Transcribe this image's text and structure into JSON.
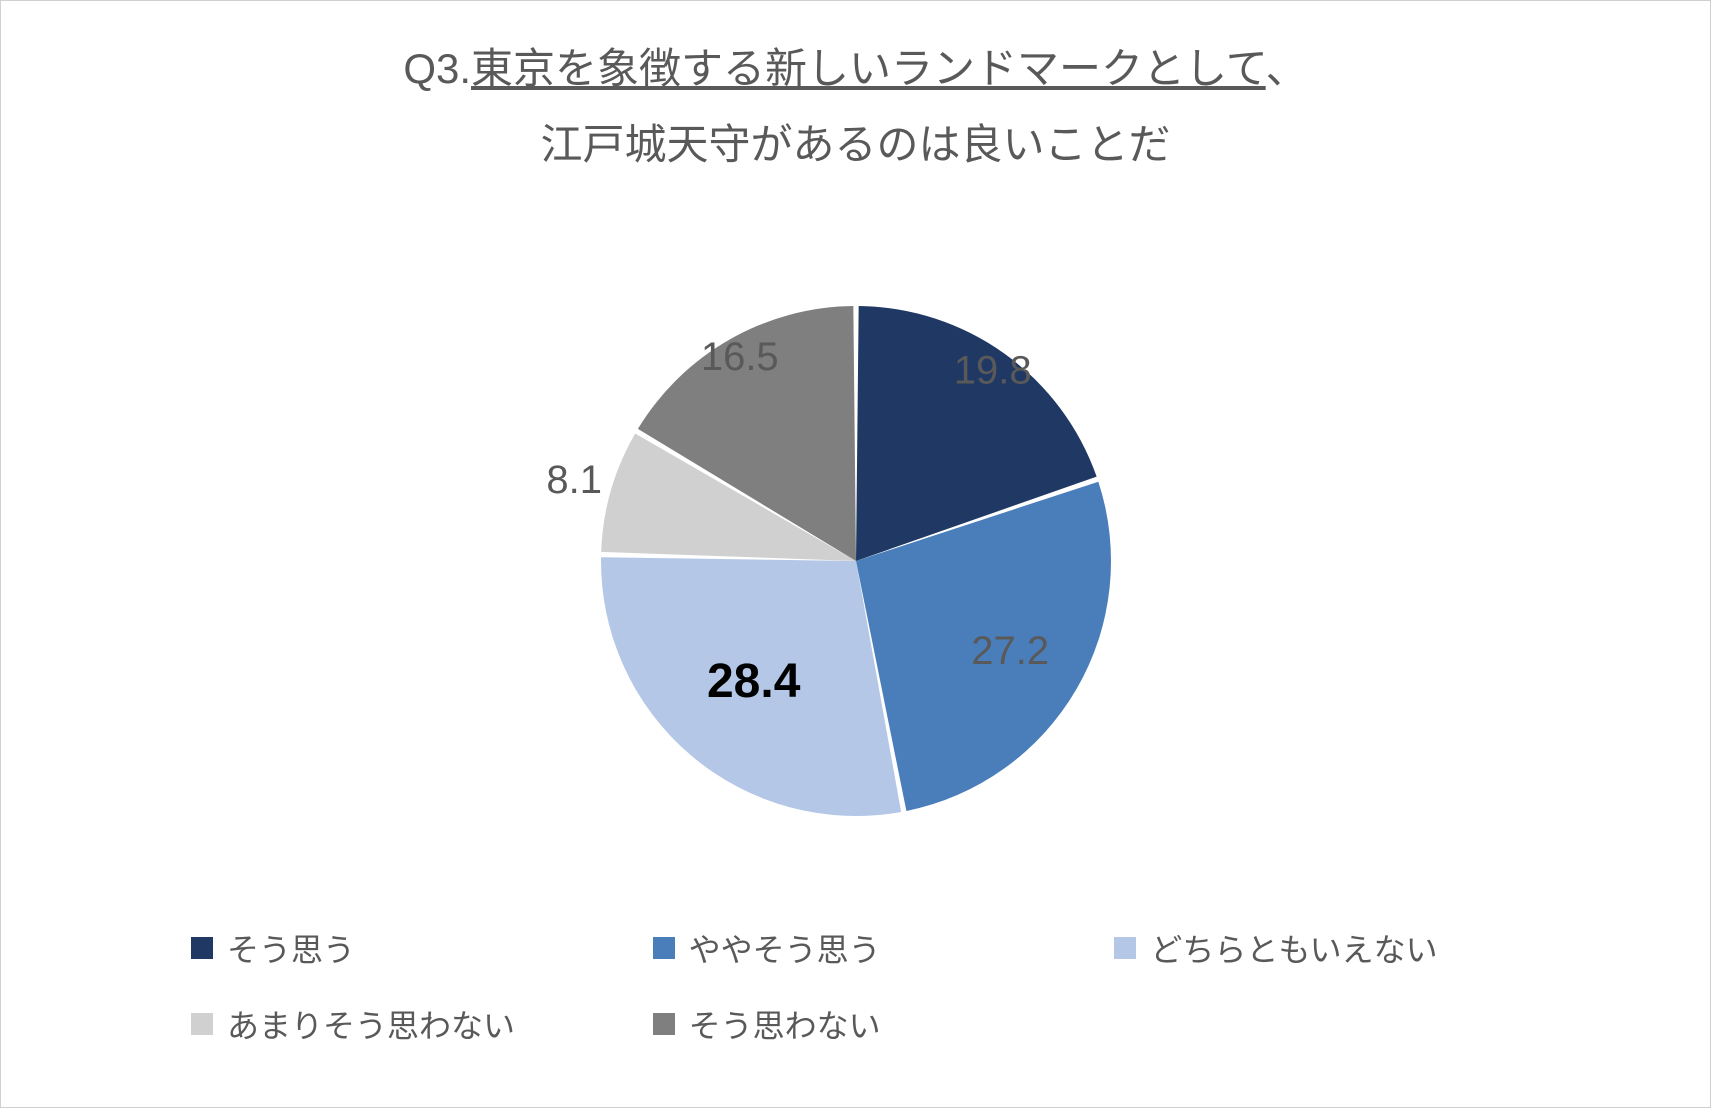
{
  "chart": {
    "type": "pie",
    "title_line1_prefix": "Q3.",
    "title_line1_underlined": "東京を象徴する新しいランドマークとして",
    "title_line1_suffix": "、",
    "title_line2": "江戸城天守があるのは良いことだ",
    "title_color": "#595959",
    "title_fontsize": 42,
    "background_color": "#ffffff",
    "border_color": "#d0d0d0",
    "pie_radius": 255,
    "start_angle": -90,
    "slice_gap_deg": 1.2,
    "slices": [
      {
        "label": "そう思う",
        "value": 19.8,
        "color": "#1f3864",
        "data_label_color": "#595959",
        "data_label_fontsize": 40,
        "data_label_bold": false,
        "label_radius_factor": 0.92
      },
      {
        "label": "ややそう思う",
        "value": 27.2,
        "color": "#4a7ebb",
        "data_label_color": "#595959",
        "data_label_fontsize": 40,
        "data_label_bold": false,
        "label_radius_factor": 0.7
      },
      {
        "label": "どちらともいえない",
        "value": 28.4,
        "color": "#b4c7e7",
        "data_label_color": "#000000",
        "data_label_fontsize": 48,
        "data_label_bold": true,
        "label_radius_factor": 0.62
      },
      {
        "label": "あまりそう思わない",
        "value": 8.1,
        "color": "#d0d0d0",
        "data_label_color": "#595959",
        "data_label_fontsize": 40,
        "data_label_bold": false,
        "label_radius_factor": 1.15
      },
      {
        "label": "そう思わない",
        "value": 16.5,
        "color": "#7f7f7f",
        "data_label_color": "#595959",
        "data_label_fontsize": 40,
        "data_label_bold": false,
        "label_radius_factor": 0.92
      }
    ],
    "legend": {
      "fontsize": 32,
      "color": "#595959",
      "swatch_size": 22
    }
  }
}
